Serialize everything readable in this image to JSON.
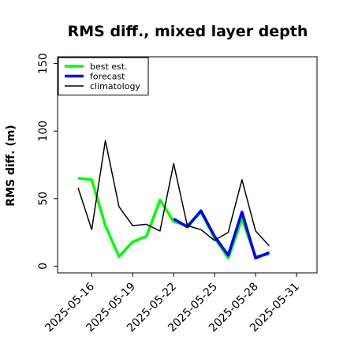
{
  "chart_data": {
    "type": "line",
    "title": "RMS diff., mixed layer depth",
    "xlabel": "",
    "ylabel": "RMS diff. (m)",
    "ylim": [
      -5,
      155
    ],
    "yticks": [
      0,
      50,
      100,
      150
    ],
    "xlim": [
      "2025-05-13T12:00",
      "2025-06-01T12:00"
    ],
    "xticks": [
      "2025-05-16",
      "2025-05-19",
      "2025-05-22",
      "2025-05-25",
      "2025-05-28",
      "2025-05-31"
    ],
    "xtick_colors": [
      "#000000",
      "#000000",
      "#008000",
      "#000000",
      "#000000",
      "#000000"
    ],
    "x": [
      "2025-05-15",
      "2025-05-16",
      "2025-05-17",
      "2025-05-18",
      "2025-05-19",
      "2025-05-20",
      "2025-05-21",
      "2025-05-22",
      "2025-05-23",
      "2025-05-24",
      "2025-05-25",
      "2025-05-26",
      "2025-05-27",
      "2025-05-28",
      "2025-05-29"
    ],
    "series": [
      {
        "name": "best est.",
        "color": "#00ff00",
        "line_width": 3.5,
        "values": [
          65,
          64,
          30,
          7,
          18,
          22,
          49,
          33,
          30,
          40,
          21,
          6,
          35,
          7,
          9
        ]
      },
      {
        "name": "forecast",
        "color": "#0000ff",
        "line_width": 3.5,
        "values": [
          null,
          null,
          null,
          null,
          null,
          null,
          null,
          35,
          29,
          41,
          22,
          8,
          40,
          6,
          10
        ]
      },
      {
        "name": "climatology",
        "color": "#000000",
        "line_width": 1.5,
        "values": [
          58,
          27,
          93,
          44,
          30,
          31,
          26,
          76,
          30,
          27,
          19,
          25,
          64,
          26,
          15
        ]
      }
    ],
    "legend": {
      "position": "top-left"
    },
    "grid": false
  }
}
